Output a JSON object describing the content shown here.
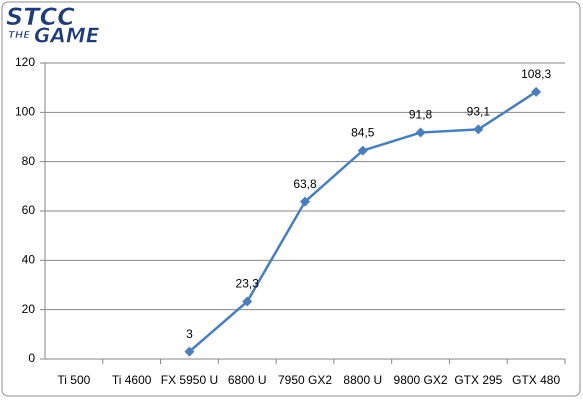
{
  "logo": {
    "line1": "STCC",
    "line2": "THE",
    "line3": "GAME"
  },
  "chart_data": {
    "type": "line",
    "categories": [
      "Ti 500",
      "Ti 4600",
      "FX 5950 U",
      "6800 U",
      "7950 GX2",
      "8800 U",
      "9800 GX2",
      "GTX 295",
      "GTX 480"
    ],
    "series": [
      {
        "name": null,
        "color": "#4a7ebb",
        "values": [
          null,
          null,
          3,
          23.3,
          63.8,
          84.5,
          91.8,
          93.1,
          108.3
        ],
        "value_labels": [
          null,
          null,
          "3",
          "23,3",
          "63,8",
          "84,5",
          "91,8",
          "93,1",
          "108,3"
        ]
      }
    ],
    "ylim": [
      0,
      120
    ],
    "yticks": [
      0,
      20,
      40,
      60,
      80,
      100,
      120
    ],
    "grid": true
  }
}
